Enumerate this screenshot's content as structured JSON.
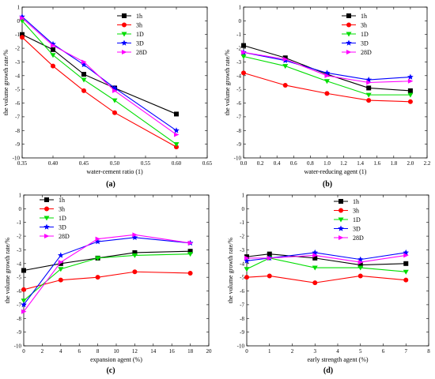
{
  "series_style": [
    {
      "color": "#000000",
      "marker": "square"
    },
    {
      "color": "#ff0000",
      "marker": "circle"
    },
    {
      "color": "#00dd00",
      "marker": "triangle-down"
    },
    {
      "color": "#0000ff",
      "marker": "star"
    },
    {
      "color": "#ff00ff",
      "marker": "triangle-right"
    }
  ],
  "chart_data": [
    {
      "type": "line",
      "panel_label": "(a)",
      "xlabel": "water-cement ratio (1)",
      "ylabel": "the volume growth rate/%",
      "xlim": [
        0.35,
        0.65
      ],
      "ylim": [
        -10,
        1
      ],
      "x_ticks": [
        "0.35",
        "0.40",
        "0.45",
        "0.50",
        "0.55",
        "0.60",
        "0.65"
      ],
      "y_ticks": [
        "-10",
        "-9",
        "-8",
        "-7",
        "-6",
        "-5",
        "-4",
        "-3",
        "-2",
        "-1",
        "0",
        "1"
      ],
      "legend_position": "top-right",
      "x": [
        0.35,
        0.4,
        0.45,
        0.5,
        0.6
      ],
      "series": [
        {
          "name": "1h",
          "values": [
            -1.0,
            -2.1,
            -3.9,
            -4.9,
            -6.8
          ]
        },
        {
          "name": "3h",
          "values": [
            -1.2,
            -3.3,
            -5.1,
            -6.7,
            -9.2
          ]
        },
        {
          "name": "1D",
          "values": [
            0.0,
            -2.5,
            -4.3,
            -5.8,
            -9.0
          ]
        },
        {
          "name": "3D",
          "values": [
            0.3,
            -1.7,
            -3.2,
            -4.9,
            -8.0
          ]
        },
        {
          "name": "28D",
          "values": [
            0.2,
            -1.8,
            -3.0,
            -5.1,
            -8.3
          ]
        }
      ]
    },
    {
      "type": "line",
      "panel_label": "(b)",
      "xlabel": "water-reducing agent (1)",
      "ylabel": "the volume growth rate/%",
      "xlim": [
        0.0,
        2.2
      ],
      "ylim": [
        -10,
        1
      ],
      "x_ticks": [
        "0.0",
        "0.2",
        "0.4",
        "0.6",
        "0.8",
        "1.0",
        "1.2",
        "1.4",
        "1.6",
        "1.8",
        "2.0",
        "2.2"
      ],
      "y_ticks": [
        "-10",
        "-9",
        "-8",
        "-7",
        "-6",
        "-5",
        "-4",
        "-3",
        "-2",
        "-1",
        "0",
        "1"
      ],
      "legend_position": "top-right",
      "x": [
        0.0,
        0.5,
        1.0,
        1.5,
        2.0
      ],
      "series": [
        {
          "name": "1h",
          "values": [
            -1.8,
            -2.7,
            -3.9,
            -4.9,
            -5.1
          ]
        },
        {
          "name": "3h",
          "values": [
            -3.8,
            -4.7,
            -5.3,
            -5.8,
            -5.9
          ]
        },
        {
          "name": "1D",
          "values": [
            -2.6,
            -3.3,
            -4.4,
            -5.4,
            -5.4
          ]
        },
        {
          "name": "3D",
          "values": [
            -2.3,
            -2.9,
            -3.8,
            -4.3,
            -4.1
          ]
        },
        {
          "name": "28D",
          "values": [
            -2.3,
            -2.8,
            -4.0,
            -4.5,
            -4.4
          ]
        }
      ]
    },
    {
      "type": "line",
      "panel_label": "(c)",
      "xlabel": "expansion agent (%)",
      "ylabel": "the volume growth rate/%",
      "xlim": [
        0,
        20
      ],
      "ylim": [
        -10,
        1
      ],
      "x_ticks": [
        "0",
        "2",
        "4",
        "6",
        "8",
        "10",
        "12",
        "14",
        "16",
        "18",
        "20"
      ],
      "y_ticks": [
        "-10",
        "-9",
        "-8",
        "-7",
        "-6",
        "-5",
        "-4",
        "-3",
        "-2",
        "-1",
        "0",
        "1"
      ],
      "legend_position": "top-center",
      "x": [
        0,
        4,
        8,
        12,
        18
      ],
      "series": [
        {
          "name": "1h",
          "values": [
            -4.5,
            -4.0,
            -3.6,
            -3.2,
            -3.1
          ]
        },
        {
          "name": "3h",
          "values": [
            -5.9,
            -5.2,
            -5.0,
            -4.6,
            -4.7
          ]
        },
        {
          "name": "1D",
          "values": [
            -6.7,
            -4.4,
            -3.6,
            -3.4,
            -3.3
          ]
        },
        {
          "name": "3D",
          "values": [
            -7.0,
            -3.4,
            -2.4,
            -2.1,
            -2.5
          ]
        },
        {
          "name": "28D",
          "values": [
            -7.5,
            -3.9,
            -2.2,
            -1.9,
            -2.5
          ]
        }
      ]
    },
    {
      "type": "line",
      "panel_label": "(d)",
      "xlabel": "early strength agent (%)",
      "ylabel": "the volume growth rate/%",
      "xlim": [
        0,
        8
      ],
      "ylim": [
        -10,
        1
      ],
      "x_ticks": [
        "0",
        "1",
        "2",
        "3",
        "4",
        "5",
        "6",
        "7",
        "8"
      ],
      "y_ticks": [
        "-10",
        "-9",
        "-8",
        "-7",
        "-6",
        "-5",
        "-4",
        "-3",
        "-2",
        "-1",
        "0",
        "1"
      ],
      "legend_position": "top-center",
      "x": [
        0,
        1,
        3,
        5,
        7
      ],
      "series": [
        {
          "name": "1h",
          "values": [
            -3.5,
            -3.3,
            -3.6,
            -4.1,
            -4.0
          ]
        },
        {
          "name": "3h",
          "values": [
            -5.0,
            -4.9,
            -5.4,
            -4.9,
            -5.2
          ]
        },
        {
          "name": "1D",
          "values": [
            -4.4,
            -3.6,
            -4.3,
            -4.3,
            -4.6
          ]
        },
        {
          "name": "3D",
          "values": [
            -3.8,
            -3.6,
            -3.2,
            -3.7,
            -3.2
          ]
        },
        {
          "name": "28D",
          "values": [
            -3.6,
            -3.6,
            -3.4,
            -3.9,
            -3.4
          ]
        }
      ]
    }
  ]
}
